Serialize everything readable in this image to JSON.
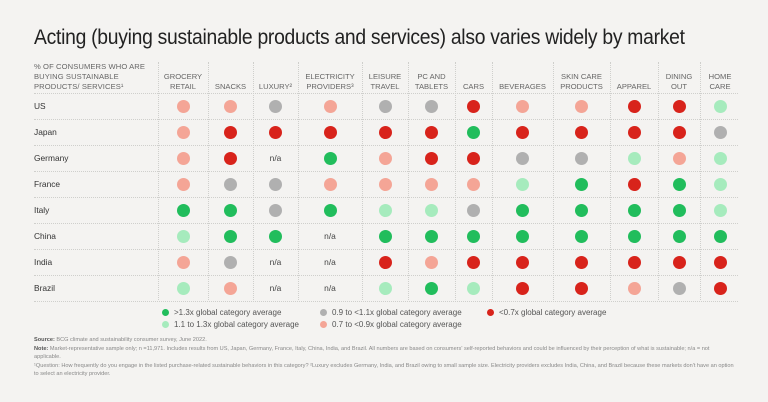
{
  "title": "Acting (buying sustainable products and services) also varies widely by market",
  "colors": {
    "high": "#21bd5c",
    "mid_high": "#a6ebbd",
    "neutral": "#b0b0b0",
    "mid_low": "#f4a596",
    "low": "#d8231b"
  },
  "chart_data": {
    "type": "heatmap",
    "title": "Acting (buying sustainable products and services) also varies widely by market",
    "row_header": "% of consumers who are buying sustainable products/ services¹",
    "categories": [
      "GROCERY\nRETAIL",
      "SNACKS",
      "LUXURY²",
      "ELECTRICITY\nPROVIDERS³",
      "LEISURE\nTRAVEL",
      "PC AND\nTABLETS",
      "CARS",
      "BEVERAGES",
      "SKIN CARE\nPRODUCTS",
      "APPAREL",
      "DINING\nOUT",
      "HOME\nCARE"
    ],
    "rows": [
      {
        "market": "US",
        "values": [
          "mid_low",
          "mid_low",
          "neutral",
          "mid_low",
          "neutral",
          "neutral",
          "low",
          "mid_low",
          "mid_low",
          "low",
          "low",
          "mid_high"
        ]
      },
      {
        "market": "Japan",
        "values": [
          "mid_low",
          "low",
          "low",
          "low",
          "low",
          "low",
          "high",
          "low",
          "low",
          "low",
          "low",
          "neutral"
        ]
      },
      {
        "market": "Germany",
        "values": [
          "mid_low",
          "low",
          "n/a",
          "high",
          "mid_low",
          "low",
          "low",
          "neutral",
          "neutral",
          "mid_high",
          "mid_low",
          "mid_high"
        ]
      },
      {
        "market": "France",
        "values": [
          "mid_low",
          "neutral",
          "neutral",
          "mid_low",
          "mid_low",
          "mid_low",
          "mid_low",
          "mid_high",
          "high",
          "low",
          "high",
          "mid_high"
        ]
      },
      {
        "market": "Italy",
        "values": [
          "high",
          "high",
          "neutral",
          "high",
          "mid_high",
          "mid_high",
          "neutral",
          "high",
          "high",
          "high",
          "high",
          "mid_high"
        ]
      },
      {
        "market": "China",
        "values": [
          "mid_high",
          "high",
          "high",
          "n/a",
          "high",
          "high",
          "high",
          "high",
          "high",
          "high",
          "high",
          "high"
        ]
      },
      {
        "market": "India",
        "values": [
          "mid_low",
          "neutral",
          "n/a",
          "n/a",
          "low",
          "mid_low",
          "low",
          "low",
          "low",
          "low",
          "low",
          "low"
        ]
      },
      {
        "market": "Brazil",
        "values": [
          "mid_high",
          "mid_low",
          "n/a",
          "n/a",
          "mid_high",
          "high",
          "mid_high",
          "low",
          "low",
          "mid_low",
          "neutral",
          "low"
        ]
      }
    ],
    "legend": [
      {
        "key": "high",
        "label": ">1.3x global category average"
      },
      {
        "key": "mid_high",
        "label": "1.1 to 1.3x global category average"
      },
      {
        "key": "neutral",
        "label": "0.9 to <1.1x global category average"
      },
      {
        "key": "mid_low",
        "label": "0.7 to <0.9x global category average"
      },
      {
        "key": "low",
        "label": "<0.7x global category average"
      }
    ],
    "na_label": "n/a"
  },
  "notes": {
    "source_label": "Source:",
    "source_text": " BCG climate and sustainability consumer survey, June 2022.",
    "note_label": "Note:",
    "note_text": " Market-representative sample only; n =11,971. Includes results from US, Japan, Germany, France, Italy, China, India, and Brazil. All numbers are based on consumers' self-reported behaviors and could be influenced by their perception of what is sustainable; n/a = not applicable.",
    "footnote": "¹Question: How frequently do you engage in the listed purchase-related sustainable behaviors in this category? ²Luxury excludes Germany, India, and Brazil owing to small sample size. Electricity providers excludes India, China, and Brazil because these markets don't have an option to select an electricity provider."
  }
}
